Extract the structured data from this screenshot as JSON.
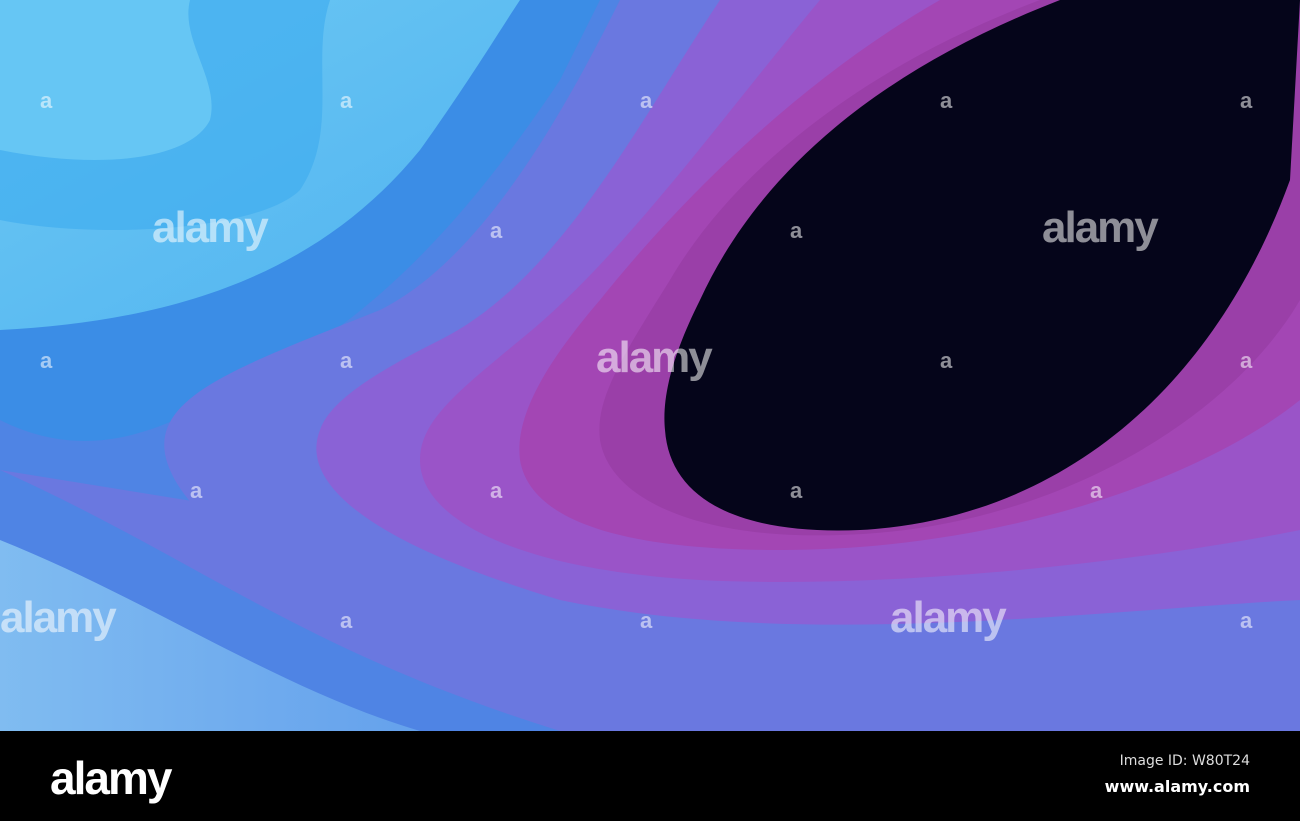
{
  "watermark": {
    "brand": "alamy",
    "small_mark": "a"
  },
  "footer": {
    "logo": "alamy",
    "image_id": "Image ID: W80T24",
    "url": "www.alamy.com"
  },
  "colors": {
    "light_blue": "#5ec2f2",
    "blue": "#1c8ee8",
    "violet": "#7a5ad8",
    "magenta": "#a748b8",
    "dark_center": "#05051a"
  }
}
